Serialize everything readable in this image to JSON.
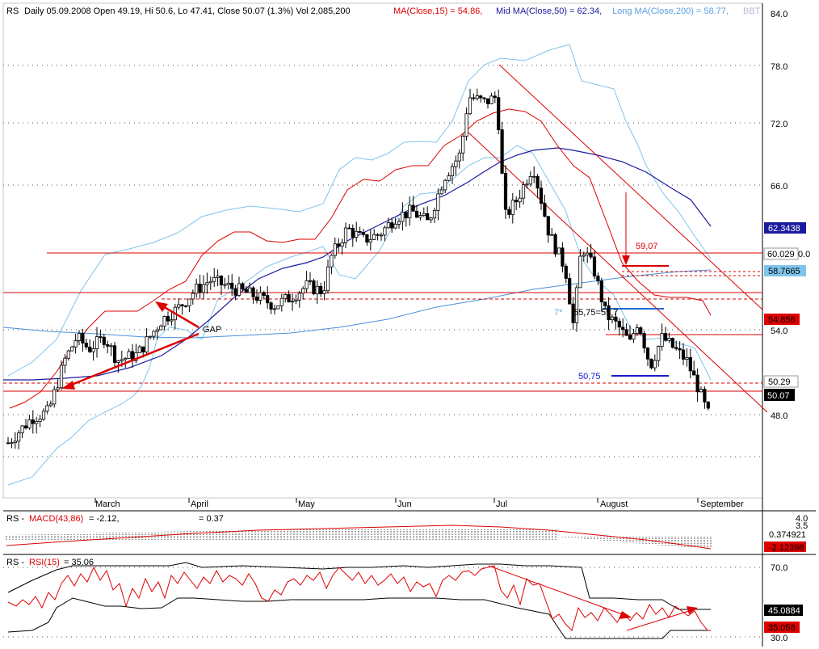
{
  "chart_data": [
    {
      "type": "candlestick",
      "header": {
        "symbol": "RS",
        "info": "Daily 05.09.2008 Open 49.19, Hi 50.6, Lo 47.41, Close 50.07 (1.3%) Vol 2,085,200",
        "ma15_label": "MA(Close,15) = 54.86,",
        "ma50_label": "Mid MA(Close,50) = 62.34,",
        "ma200_label": "Long MA(Close,200) = 58.77,",
        "bbt_label": "BBT"
      },
      "y_ticks": [
        "84.0",
        "78.0",
        "72.0",
        "66.0",
        "54.0",
        "48.0"
      ],
      "y_range": [
        43,
        85
      ],
      "x_labels": [
        "March",
        "April",
        "May",
        "Jun",
        "Jul",
        "August",
        "September"
      ],
      "price_tags": {
        "ma50": "62.3438",
        "resistance": "60.029",
        "ma200": "58.7665",
        "ma15": "54.856",
        "support": "50.29",
        "close": "50.07",
        "resistance_suffix": "0.0"
      },
      "annotations": {
        "gap": "GAP",
        "level_5907": "59,07",
        "level_5575": "55,75=55,7",
        "star": "7*",
        "level_5075": "50,75"
      },
      "colors": {
        "candle": "#000000",
        "ma15": "#dd0000",
        "ma50": "#1a1aa0",
        "bands": "#7fc4ec",
        "ma200": "#4a90d9",
        "horizontal": "#dd0000",
        "trend": "#dd0000"
      }
    },
    {
      "type": "line",
      "title": "MACD",
      "labels": {
        "prefix": "RS - ",
        "macd": "MACD(43,86)",
        "macd_value": "= -2.12,",
        "signal_value": "= 0.37"
      },
      "y_ticks": [
        "4.0",
        "3.5"
      ],
      "tags": {
        "signal": "0.374921",
        "macd": "-2.12398"
      }
    },
    {
      "type": "line",
      "title": "RSI",
      "labels": {
        "prefix": "RS - ",
        "rsi": "RSI(15)",
        "rsi_value": "= 35.06"
      },
      "y_ticks": [
        "70.0",
        "30.0"
      ],
      "tags": {
        "upper": "45.0884",
        "rsi": "35.058"
      }
    }
  ]
}
